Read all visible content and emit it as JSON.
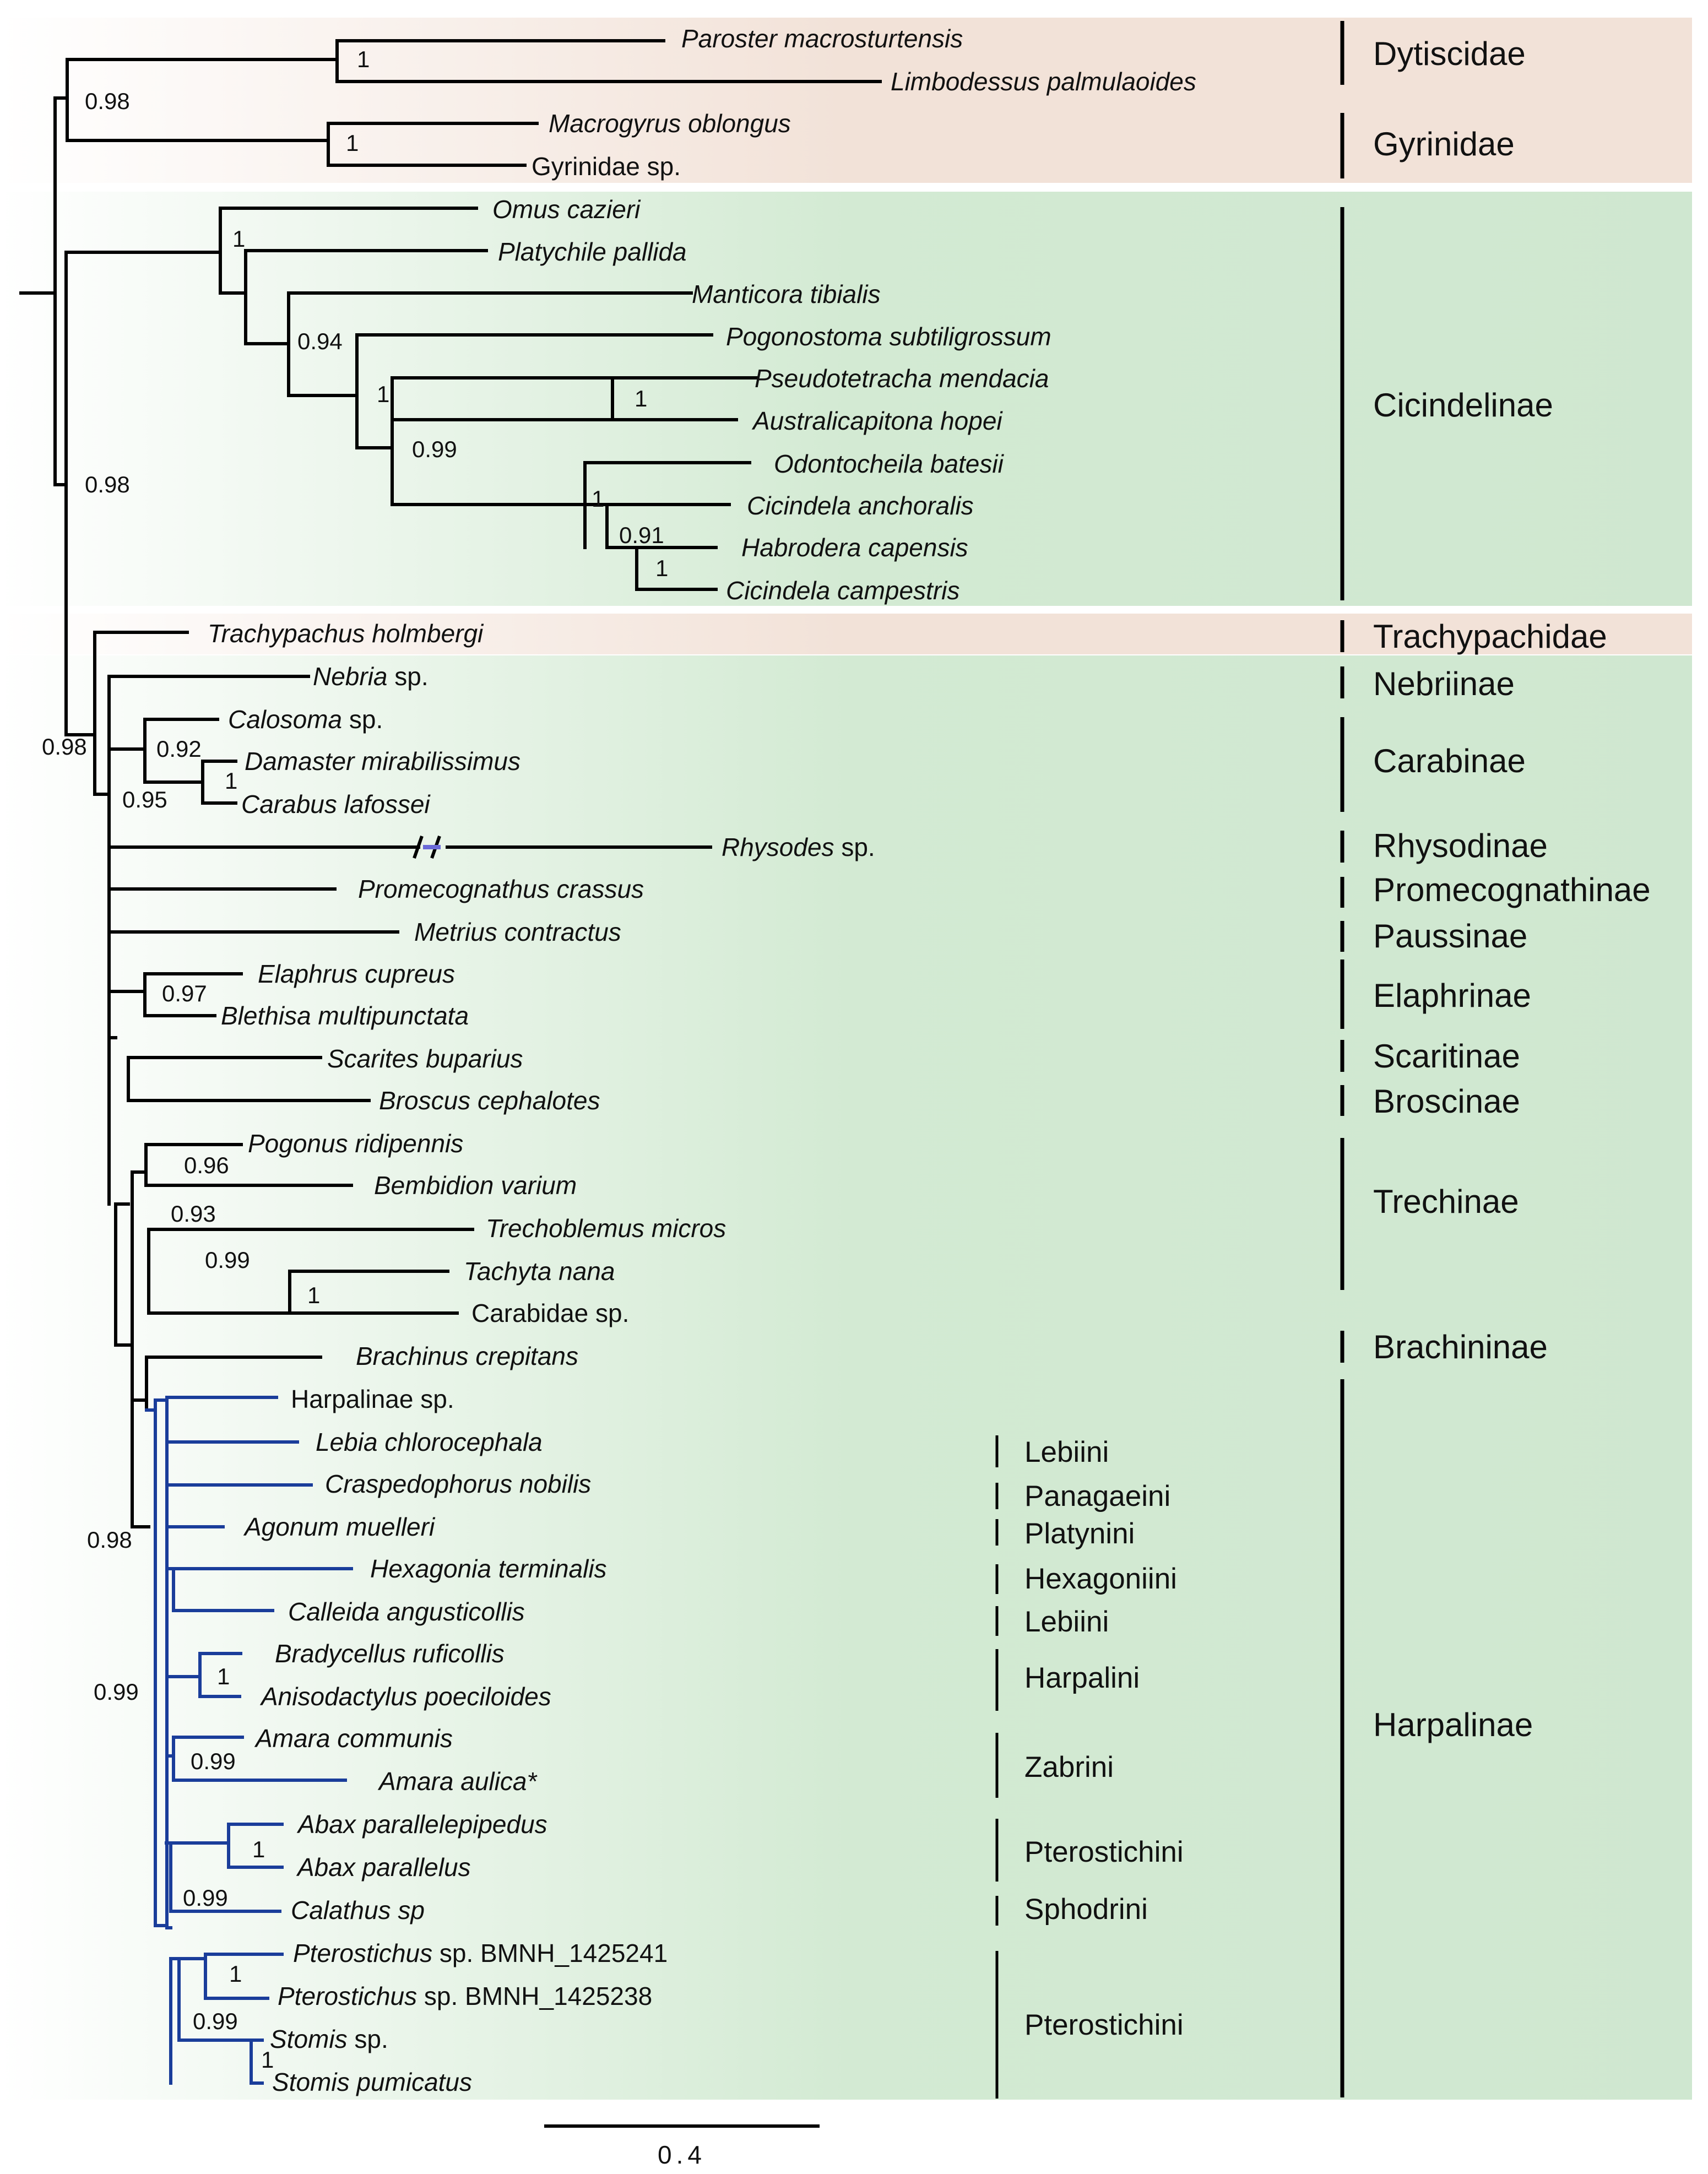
{
  "colors": {
    "band_tan": "#f2e2d8",
    "band_green": "#cfe7d0",
    "branch_black": "#000000",
    "branch_blue": "#1a3d9a",
    "break_mark": "#6a6ad8"
  },
  "tree": {
    "root_support": [
      {
        "id": "s_dyt_gyr",
        "value": "0.98"
      },
      {
        "id": "s_main",
        "value": "0.98"
      },
      {
        "id": "s_geadephaga",
        "value": "0.98"
      },
      {
        "id": "s_dyt",
        "value": "1"
      },
      {
        "id": "s_gyr",
        "value": "1"
      },
      {
        "id": "s_cic_a",
        "value": "1"
      },
      {
        "id": "s_cic_b",
        "value": "0.94"
      },
      {
        "id": "s_cic_c",
        "value": "1"
      },
      {
        "id": "s_cic_d",
        "value": "0.99"
      },
      {
        "id": "s_pseudo",
        "value": "1"
      },
      {
        "id": "s_odont",
        "value": "1"
      },
      {
        "id": "s_cicanch",
        "value": "0.91"
      },
      {
        "id": "s_habro",
        "value": "1"
      },
      {
        "id": "s_carab_a",
        "value": "0.92"
      },
      {
        "id": "s_carab_b",
        "value": "1"
      },
      {
        "id": "s_carab_c",
        "value": "0.95"
      },
      {
        "id": "s_elaph",
        "value": "0.97"
      },
      {
        "id": "s_pogon",
        "value": "0.96"
      },
      {
        "id": "s_trech",
        "value": "0.93"
      },
      {
        "id": "s_trech2",
        "value": "0.99"
      },
      {
        "id": "s_tachy",
        "value": "1"
      },
      {
        "id": "s_harp_a",
        "value": "0.98"
      },
      {
        "id": "s_harp_b",
        "value": "0.99"
      },
      {
        "id": "s_brady",
        "value": "1"
      },
      {
        "id": "s_amara",
        "value": "0.99"
      },
      {
        "id": "s_abax",
        "value": "1"
      },
      {
        "id": "s_calath",
        "value": "0.99"
      },
      {
        "id": "s_ptero",
        "value": "1"
      },
      {
        "id": "s_ptero2",
        "value": "0.99"
      },
      {
        "id": "s_stomis",
        "value": "1"
      }
    ],
    "taxa": [
      {
        "name": "Paroster macrosturtensis"
      },
      {
        "name": "Limbodessus palmulaoides"
      },
      {
        "name": "Macrogyrus oblongus"
      },
      {
        "name": "Gyrinidae sp."
      },
      {
        "name": "Omus cazieri"
      },
      {
        "name": "Platychile pallida"
      },
      {
        "name": "Manticora tibialis"
      },
      {
        "name": "Pogonostoma subtiligrossum"
      },
      {
        "name": "Pseudotetracha mendacia"
      },
      {
        "name": "Australicapitona hopei"
      },
      {
        "name": "Odontocheila batesii"
      },
      {
        "name": "Cicindela anchoralis"
      },
      {
        "name": "Habrodera capensis"
      },
      {
        "name": "Cicindela campestris"
      },
      {
        "name": "Trachypachus holmbergi"
      },
      {
        "name": "Nebria",
        "suffix": " sp."
      },
      {
        "name": "Calosoma",
        "suffix": " sp."
      },
      {
        "name": "Damaster mirabilissimus"
      },
      {
        "name": "Carabus lafossei"
      },
      {
        "name": "Rhysodes",
        "suffix": " sp."
      },
      {
        "name": "Promecognathus crassus"
      },
      {
        "name": "Metrius contractus"
      },
      {
        "name": "Elaphrus cupreus"
      },
      {
        "name": "Blethisa multipunctata"
      },
      {
        "name": "Scarites buparius"
      },
      {
        "name": "Broscus cephalotes"
      },
      {
        "name": "Pogonus ridipennis"
      },
      {
        "name": "Bembidion varium"
      },
      {
        "name": "Trechoblemus micros"
      },
      {
        "name": "Tachyta nana"
      },
      {
        "name": "Carabidae sp."
      },
      {
        "name": "Brachinus crepitans"
      },
      {
        "name": "Harpalinae sp."
      },
      {
        "name": "Lebia chlorocephala"
      },
      {
        "name": "Craspedophorus nobilis"
      },
      {
        "name": "Agonum muelleri"
      },
      {
        "name": "Hexagonia terminalis"
      },
      {
        "name": "Calleida angusticollis"
      },
      {
        "name": "Bradycellus ruficollis"
      },
      {
        "name": "Anisodactylus poeciloides"
      },
      {
        "name": "Amara communis"
      },
      {
        "name": "Amara aulica*"
      },
      {
        "name": "Abax parallelepipedus"
      },
      {
        "name": "Abax parallelus"
      },
      {
        "name": "Calathus sp"
      },
      {
        "name": "Pterostichus",
        "suffix": " sp. BMNH_1425241"
      },
      {
        "name": "Pterostichus",
        "suffix": " sp. BMNH_1425238"
      },
      {
        "name": "Stomis",
        "suffix": " sp."
      },
      {
        "name": "Stomis pumicatus"
      }
    ],
    "groups": [
      {
        "label": "Dytiscidae"
      },
      {
        "label": "Gyrinidae"
      },
      {
        "label": "Cicindelinae"
      },
      {
        "label": "Trachypachidae"
      },
      {
        "label": "Nebriinae"
      },
      {
        "label": "Carabinae"
      },
      {
        "label": "Rhysodinae"
      },
      {
        "label": "Promecognathinae"
      },
      {
        "label": "Paussinae"
      },
      {
        "label": "Elaphrinae"
      },
      {
        "label": "Scaritinae"
      },
      {
        "label": "Broscinae"
      },
      {
        "label": "Trechinae"
      },
      {
        "label": "Brachininae"
      },
      {
        "label": "Harpalinae"
      }
    ],
    "tribes": [
      {
        "label": "Lebiini"
      },
      {
        "label": "Panagaeini"
      },
      {
        "label": "Platynini"
      },
      {
        "label": "Hexagoniini"
      },
      {
        "label": "Lebiini"
      },
      {
        "label": "Harpalini"
      },
      {
        "label": "Zabrini"
      },
      {
        "label": "Pterostichini"
      },
      {
        "label": "Sphodrini"
      },
      {
        "label": "Pterostichini"
      }
    ],
    "scale_bar": {
      "label": "0.4",
      "value": 0.4
    }
  }
}
